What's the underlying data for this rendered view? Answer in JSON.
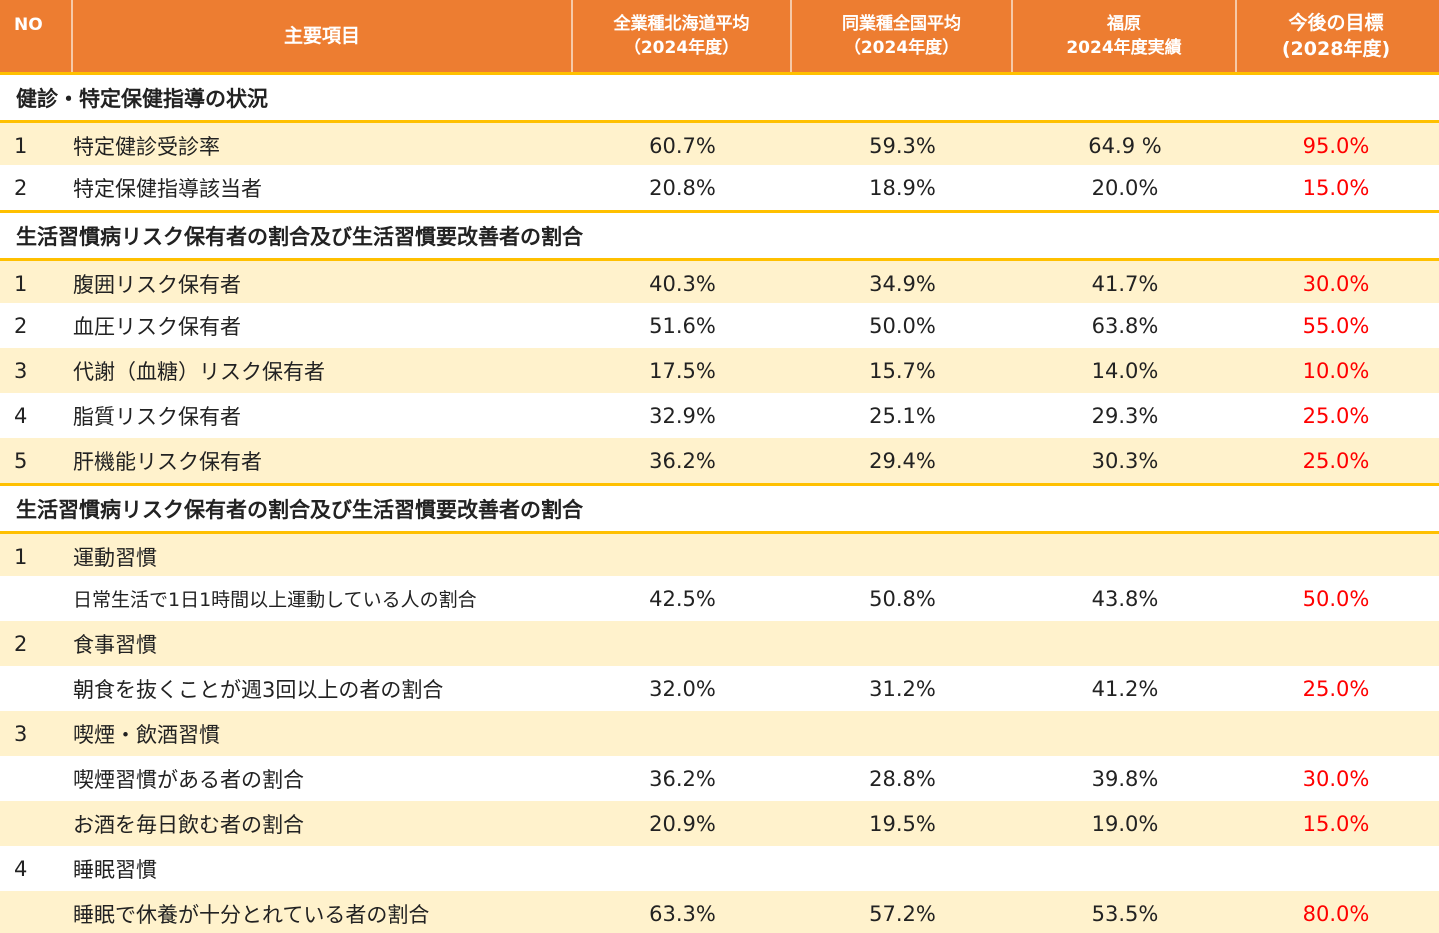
{
  "header": {
    "no": "NO",
    "item": "主要項目",
    "col1": "全業種北海道平均\n（2024年度）",
    "col2": "同業種全国平均\n（2024年度）",
    "col3": "福原\n2024年度実績",
    "col4": "今後の目標\n(2028年度)"
  },
  "sections": [
    {
      "title": "健診・特定保健指導の状況",
      "rows": [
        {
          "no": "1",
          "label": "特定健診受診率",
          "v1": "60.7%",
          "v2": "59.3%",
          "v3": "64.9 %",
          "target": "95.0%"
        },
        {
          "no": "2",
          "label": "特定保健指導該当者",
          "v1": "20.8%",
          "v2": "18.9%",
          "v3": "20.0%",
          "target": "15.0%"
        }
      ]
    },
    {
      "title": "生活習慣病リスク保有者の割合及び生活習慣要改善者の割合",
      "rows": [
        {
          "no": "1",
          "label": "腹囲リスク保有者",
          "v1": "40.3%",
          "v2": "34.9%",
          "v3": "41.7%",
          "target": "30.0%"
        },
        {
          "no": "2",
          "label": "血圧リスク保有者",
          "v1": "51.6%",
          "v2": "50.0%",
          "v3": "63.8%",
          "target": "55.0%"
        },
        {
          "no": "3",
          "label": "代謝（血糖）リスク保有者",
          "v1": "17.5%",
          "v2": "15.7%",
          "v3": "14.0%",
          "target": "10.0%"
        },
        {
          "no": "4",
          "label": "脂質リスク保有者",
          "v1": "32.9%",
          "v2": "25.1%",
          "v3": "29.3%",
          "target": "25.0%"
        },
        {
          "no": "5",
          "label": "肝機能リスク保有者",
          "v1": "36.2%",
          "v2": "29.4%",
          "v3": "30.3%",
          "target": "25.0%"
        }
      ]
    },
    {
      "title": "生活習慣病リスク保有者の割合及び生活習慣要改善者の割合",
      "rows": [
        {
          "no": "1",
          "label": "運動習慣"
        },
        {
          "label": "日常生活で1日1時間以上運動している人の割合",
          "v1": "42.5%",
          "v2": "50.8%",
          "v3": "43.8%",
          "target": "50.0%",
          "small": true
        },
        {
          "no": "2",
          "label": "食事習慣"
        },
        {
          "label": "朝食を抜くことが週3回以上の者の割合",
          "v1": "32.0%",
          "v2": "31.2%",
          "v3": "41.2%",
          "target": "25.0%"
        },
        {
          "no": "3",
          "label": "喫煙・飲酒習慣"
        },
        {
          "label": "喫煙習慣がある者の割合",
          "v1": "36.2%",
          "v2": "28.8%",
          "v3": "39.8%",
          "target": "30.0%"
        },
        {
          "label": "お酒を毎日飲む者の割合",
          "v1": "20.9%",
          "v2": "19.5%",
          "v3": "19.0%",
          "target": "15.0%"
        },
        {
          "no": "4",
          "label": "睡眠習慣"
        },
        {
          "label": "睡眠で休養が十分とれている者の割合",
          "v1": "63.3%",
          "v2": "57.2%",
          "v3": "53.5%",
          "target": "80.0%"
        }
      ]
    }
  ],
  "colors": {
    "header": "#ED7D31",
    "rule": "#FFC000",
    "shade": "#FFF2CC",
    "target": "#FF0000"
  }
}
